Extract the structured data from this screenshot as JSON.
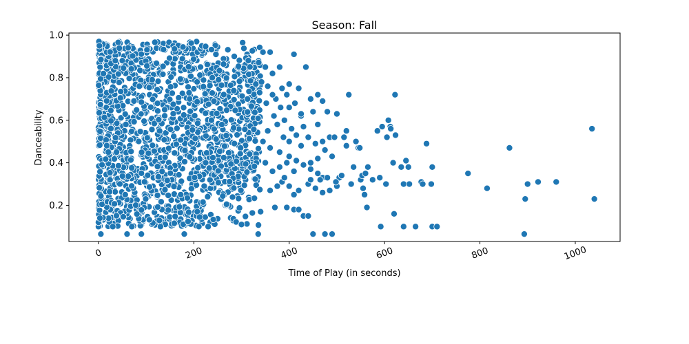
{
  "chart_data": {
    "type": "scatter",
    "title": "Season: Fall",
    "xlabel": "Time of Play (in seconds)",
    "ylabel": "Danceability",
    "xlim": [
      -62,
      1094
    ],
    "ylim": [
      0.03,
      1.01
    ],
    "xticks": [
      0,
      200,
      400,
      600,
      800,
      1000
    ],
    "yticks": [
      0.2,
      0.4,
      0.6,
      0.8,
      1.0
    ],
    "xtick_labels": [
      "0",
      "200",
      "400",
      "600",
      "800",
      "1000"
    ],
    "ytick_labels": [
      "0.2",
      "0.4",
      "0.6",
      "0.8",
      "1.0"
    ],
    "grid": false,
    "color": "#1f77b4",
    "dense_region": {
      "x_max": 340,
      "y_min": 0.1,
      "y_max": 0.97,
      "count": 1600
    },
    "points": [
      [
        1,
        0.97
      ],
      [
        2,
        0.95
      ],
      [
        0,
        0.1
      ],
      [
        0,
        0.12
      ],
      [
        3,
        0.14
      ],
      [
        5,
        0.065
      ],
      [
        60,
        0.065
      ],
      [
        90,
        0.065
      ],
      [
        180,
        0.065
      ],
      [
        335,
        0.065
      ],
      [
        30,
        0.1
      ],
      [
        70,
        0.1
      ],
      [
        130,
        0.1
      ],
      [
        230,
        0.1
      ],
      [
        300,
        0.11
      ],
      [
        340,
        0.17
      ],
      [
        370,
        0.19
      ],
      [
        395,
        0.19
      ],
      [
        410,
        0.18
      ],
      [
        420,
        0.18
      ],
      [
        430,
        0.15
      ],
      [
        440,
        0.15
      ],
      [
        345,
        0.92
      ],
      [
        360,
        0.92
      ],
      [
        410,
        0.91
      ],
      [
        350,
        0.85
      ],
      [
        365,
        0.82
      ],
      [
        380,
        0.85
      ],
      [
        400,
        0.77
      ],
      [
        420,
        0.75
      ],
      [
        435,
        0.85
      ],
      [
        445,
        0.7
      ],
      [
        460,
        0.72
      ],
      [
        470,
        0.69
      ],
      [
        480,
        0.64
      ],
      [
        450,
        0.64
      ],
      [
        425,
        0.62
      ],
      [
        400,
        0.66
      ],
      [
        390,
        0.6
      ],
      [
        375,
        0.58
      ],
      [
        355,
        0.55
      ],
      [
        345,
        0.5
      ],
      [
        360,
        0.47
      ],
      [
        380,
        0.45
      ],
      [
        400,
        0.43
      ],
      [
        415,
        0.41
      ],
      [
        430,
        0.39
      ],
      [
        445,
        0.37
      ],
      [
        460,
        0.35
      ],
      [
        470,
        0.33
      ],
      [
        350,
        0.4
      ],
      [
        365,
        0.36
      ],
      [
        385,
        0.31
      ],
      [
        400,
        0.29
      ],
      [
        420,
        0.27
      ],
      [
        440,
        0.3
      ],
      [
        455,
        0.28
      ],
      [
        470,
        0.26
      ],
      [
        485,
        0.27
      ],
      [
        500,
        0.29
      ],
      [
        360,
        0.27
      ],
      [
        375,
        0.29
      ],
      [
        390,
        0.33
      ],
      [
        410,
        0.36
      ],
      [
        425,
        0.48
      ],
      [
        440,
        0.52
      ],
      [
        455,
        0.49
      ],
      [
        470,
        0.5
      ],
      [
        485,
        0.52
      ],
      [
        495,
        0.52
      ],
      [
        405,
        0.56
      ],
      [
        415,
        0.53
      ],
      [
        430,
        0.57
      ],
      [
        460,
        0.58
      ],
      [
        445,
        0.4
      ],
      [
        460,
        0.42
      ],
      [
        475,
        0.46
      ],
      [
        490,
        0.43
      ],
      [
        400,
        0.5
      ],
      [
        388,
        0.52
      ],
      [
        395,
        0.72
      ],
      [
        372,
        0.7
      ],
      [
        385,
        0.75
      ],
      [
        412,
        0.68
      ],
      [
        425,
        0.63
      ],
      [
        500,
        0.63
      ],
      [
        505,
        0.33
      ],
      [
        510,
        0.34
      ],
      [
        515,
        0.52
      ],
      [
        520,
        0.55
      ],
      [
        520,
        0.48
      ],
      [
        525,
        0.72
      ],
      [
        530,
        0.3
      ],
      [
        535,
        0.38
      ],
      [
        540,
        0.5
      ],
      [
        545,
        0.47
      ],
      [
        548,
        0.47
      ],
      [
        550,
        0.32
      ],
      [
        553,
        0.34
      ],
      [
        555,
        0.28
      ],
      [
        558,
        0.25
      ],
      [
        560,
        0.35
      ],
      [
        563,
        0.19
      ],
      [
        565,
        0.38
      ],
      [
        575,
        0.32
      ],
      [
        585,
        0.55
      ],
      [
        590,
        0.33
      ],
      [
        592,
        0.1
      ],
      [
        595,
        0.57
      ],
      [
        603,
        0.3
      ],
      [
        605,
        0.52
      ],
      [
        608,
        0.6
      ],
      [
        612,
        0.57
      ],
      [
        613,
        0.56
      ],
      [
        618,
        0.4
      ],
      [
        620,
        0.16
      ],
      [
        622,
        0.72
      ],
      [
        623,
        0.53
      ],
      [
        635,
        0.38
      ],
      [
        640,
        0.3
      ],
      [
        640,
        0.1
      ],
      [
        645,
        0.41
      ],
      [
        650,
        0.38
      ],
      [
        652,
        0.3
      ],
      [
        665,
        0.1
      ],
      [
        677,
        0.31
      ],
      [
        680,
        0.3
      ],
      [
        688,
        0.49
      ],
      [
        698,
        0.3
      ],
      [
        700,
        0.1
      ],
      [
        700,
        0.38
      ],
      [
        710,
        0.1
      ],
      [
        775,
        0.35
      ],
      [
        815,
        0.28
      ],
      [
        862,
        0.47
      ],
      [
        893,
        0.065
      ],
      [
        895,
        0.23
      ],
      [
        900,
        0.3
      ],
      [
        922,
        0.31
      ],
      [
        960,
        0.31
      ],
      [
        1035,
        0.56
      ],
      [
        1040,
        0.23
      ],
      [
        490,
        0.065
      ],
      [
        475,
        0.065
      ],
      [
        450,
        0.065
      ],
      [
        445,
        0.32
      ],
      [
        465,
        0.32
      ],
      [
        480,
        0.33
      ],
      [
        498,
        0.31
      ],
      [
        410,
        0.25
      ],
      [
        380,
        0.38
      ],
      [
        395,
        0.4
      ],
      [
        368,
        0.62
      ],
      [
        382,
        0.66
      ],
      [
        352,
        0.68
      ],
      [
        342,
        0.78
      ],
      [
        338,
        0.73
      ],
      [
        355,
        0.76
      ],
      [
        365,
        0.72
      ],
      [
        330,
        0.77
      ]
    ]
  }
}
